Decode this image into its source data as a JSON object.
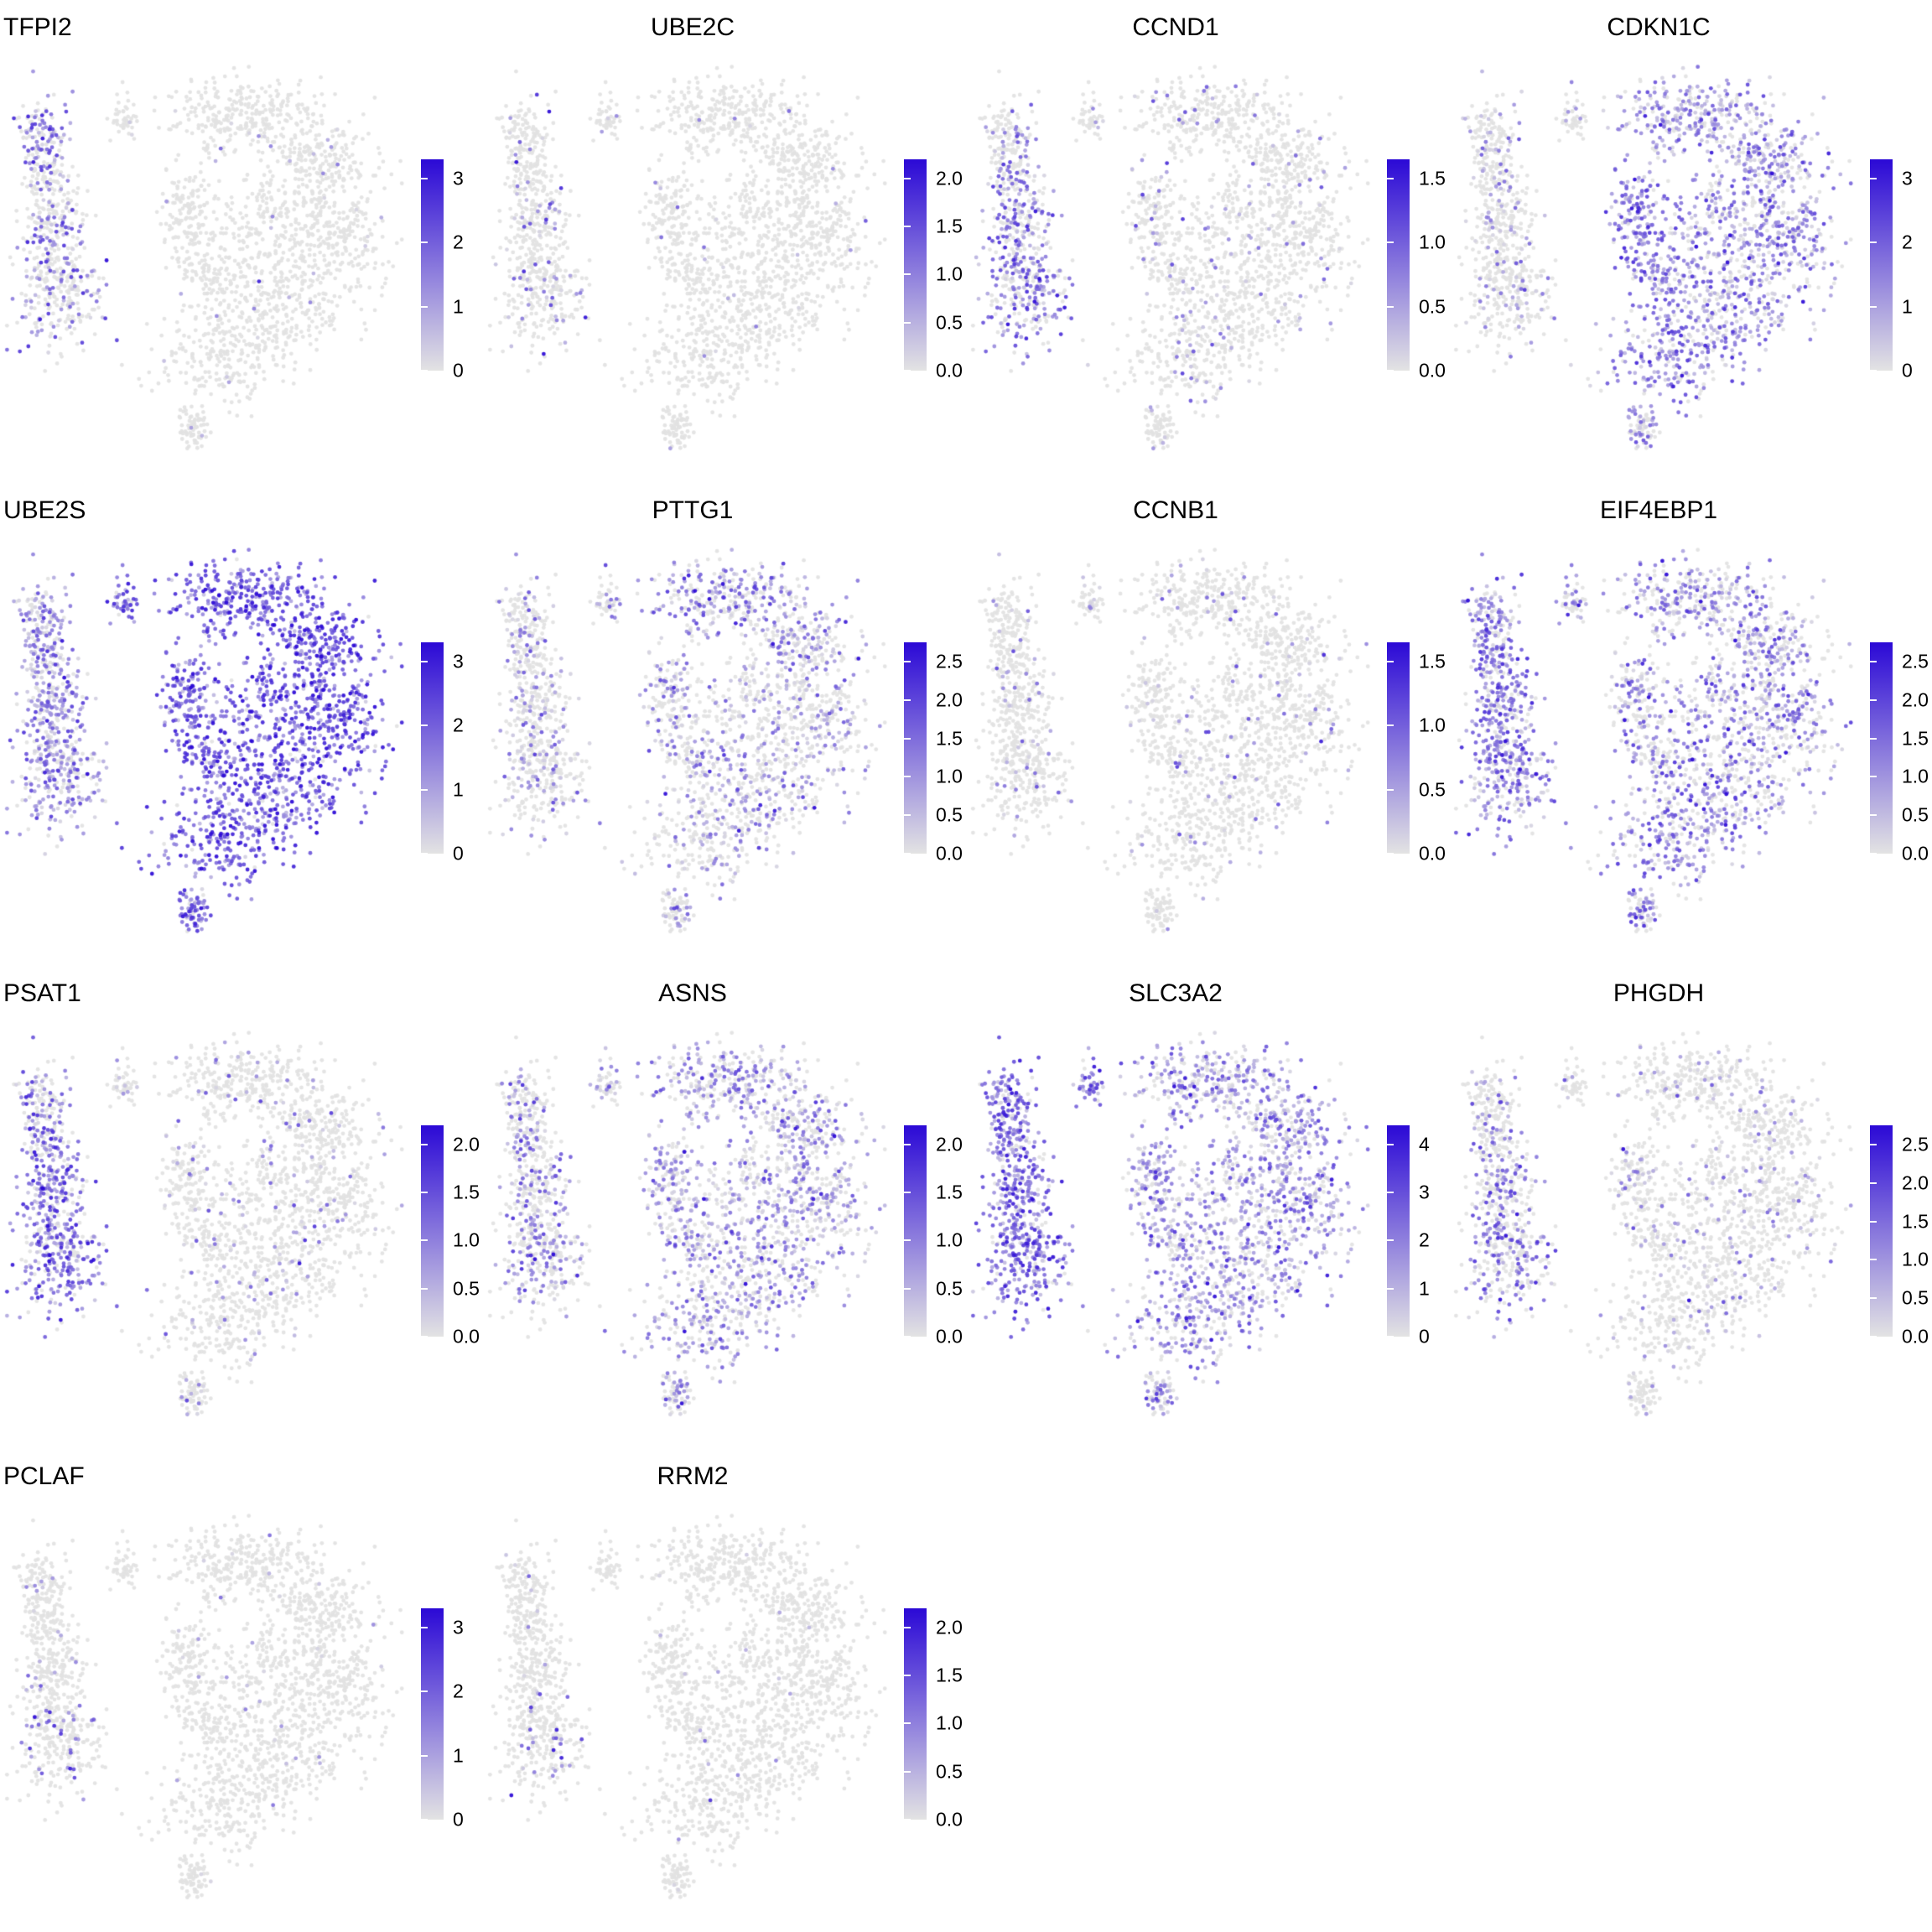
{
  "colors": {
    "background": "#FFFFFF",
    "point_gray": "#E2E2E2",
    "low": "#E3E3E3",
    "high": "#2B09D6",
    "text": "#000000"
  },
  "chart_data": {
    "type": "scatter",
    "plot_kind": "single-cell UMAP feature plots (expression overlay)",
    "grid": "4 columns x 4 rows, 14 panels, last row has 2 panels",
    "legend_position": "colorbar right of each panel",
    "colorbar_gradient": [
      "#E3E3E3",
      "#2B09D6"
    ],
    "embedding": {
      "description": "same 2D embedding in every panel: tall left cluster, small hook cluster upper-middle, large ring-like main cluster right, small blob bottom-center",
      "clusters": [
        {
          "name": "leftTop",
          "group": "left",
          "cx": 0.09,
          "cy": 0.2,
          "sx": 0.03,
          "sy": 0.055,
          "n": 130
        },
        {
          "name": "leftMid",
          "group": "left",
          "cx": 0.115,
          "cy": 0.38,
          "sx": 0.04,
          "sy": 0.075,
          "n": 220
        },
        {
          "name": "leftBot",
          "group": "left",
          "cx": 0.13,
          "cy": 0.58,
          "sx": 0.055,
          "sy": 0.075,
          "n": 260
        },
        {
          "name": "hook",
          "group": "hook",
          "cx": 0.295,
          "cy": 0.135,
          "sx": 0.018,
          "sy": 0.028,
          "n": 45
        },
        {
          "name": "mainTop",
          "group": "main",
          "cx": 0.6,
          "cy": 0.13,
          "sx": 0.095,
          "sy": 0.05,
          "n": 280
        },
        {
          "name": "mainTopRight",
          "group": "main",
          "cx": 0.78,
          "cy": 0.24,
          "sx": 0.07,
          "sy": 0.055,
          "n": 200
        },
        {
          "name": "mainRight",
          "group": "main",
          "cx": 0.84,
          "cy": 0.43,
          "sx": 0.055,
          "sy": 0.085,
          "n": 220
        },
        {
          "name": "mainCenter",
          "group": "main",
          "cx": 0.66,
          "cy": 0.4,
          "sx": 0.07,
          "sy": 0.06,
          "n": 180
        },
        {
          "name": "mainLowerMid",
          "group": "main",
          "cx": 0.7,
          "cy": 0.6,
          "sx": 0.085,
          "sy": 0.065,
          "n": 260
        },
        {
          "name": "mainBottom",
          "group": "main",
          "cx": 0.55,
          "cy": 0.74,
          "sx": 0.085,
          "sy": 0.055,
          "n": 240
        },
        {
          "name": "mainLeftArm",
          "group": "main",
          "cx": 0.455,
          "cy": 0.38,
          "sx": 0.035,
          "sy": 0.075,
          "n": 150
        },
        {
          "name": "mainInnerC",
          "group": "main",
          "cx": 0.52,
          "cy": 0.55,
          "sx": 0.045,
          "sy": 0.05,
          "n": 110
        },
        {
          "name": "bottomBlob",
          "group": "bottom",
          "cx": 0.47,
          "cy": 0.93,
          "sx": 0.022,
          "sy": 0.028,
          "n": 70
        }
      ]
    },
    "panels": [
      {
        "gene": "TFPI2",
        "colorbar_ticks": [
          "3",
          "2",
          "1",
          "0"
        ],
        "expression_by_cluster": {
          "left": {
            "frac": 0.35,
            "mean": 0.4
          },
          "leftTop": {
            "frac": 0.55,
            "mean": 0.5
          },
          "hook": {
            "frac": 0.05,
            "mean": 0.2
          },
          "main": {
            "frac": 0.02,
            "mean": 0.18
          },
          "bottom": {
            "frac": 0.04,
            "mean": 0.2
          }
        }
      },
      {
        "gene": "UBE2C",
        "colorbar_ticks": [
          "2.0",
          "1.5",
          "1.0",
          "0.5",
          "0.0"
        ],
        "expression_by_cluster": {
          "left": {
            "frac": 0.1,
            "mean": 0.35
          },
          "hook": {
            "frac": 0.05,
            "mean": 0.3
          },
          "main": {
            "frac": 0.015,
            "mean": 0.25
          },
          "bottom": {
            "frac": 0.02,
            "mean": 0.2
          }
        }
      },
      {
        "gene": "CCND1",
        "colorbar_ticks": [
          "1.5",
          "1.0",
          "0.5",
          "0.0"
        ],
        "expression_by_cluster": {
          "left": {
            "frac": 0.55,
            "mean": 0.45
          },
          "leftTop": {
            "frac": 0.25,
            "mean": 0.3
          },
          "hook": {
            "frac": 0.1,
            "mean": 0.3
          },
          "main": {
            "frac": 0.07,
            "mean": 0.3
          },
          "bottom": {
            "frac": 0.1,
            "mean": 0.3
          }
        }
      },
      {
        "gene": "CDKN1C",
        "colorbar_ticks": [
          "3",
          "2",
          "1",
          "0"
        ],
        "expression_by_cluster": {
          "left": {
            "frac": 0.2,
            "mean": 0.25
          },
          "hook": {
            "frac": 0.25,
            "mean": 0.3
          },
          "main": {
            "frac": 0.7,
            "mean": 0.33
          },
          "mainLeftArm": {
            "frac": 0.85,
            "mean": 0.45
          },
          "mainInnerC": {
            "frac": 0.85,
            "mean": 0.45
          },
          "mainBottom": {
            "frac": 0.8,
            "mean": 0.42
          },
          "bottom": {
            "frac": 0.5,
            "mean": 0.35
          }
        }
      },
      {
        "gene": "UBE2S",
        "colorbar_ticks": [
          "3",
          "2",
          "1",
          "0"
        ],
        "expression_by_cluster": {
          "left": {
            "frac": 0.75,
            "mean": 0.35
          },
          "hook": {
            "frac": 0.9,
            "mean": 0.55
          },
          "main": {
            "frac": 0.97,
            "mean": 0.6
          },
          "bottom": {
            "frac": 0.9,
            "mean": 0.5
          }
        }
      },
      {
        "gene": "PTTG1",
        "colorbar_ticks": [
          "2.5",
          "2.0",
          "1.5",
          "1.0",
          "0.5",
          "0.0"
        ],
        "expression_by_cluster": {
          "left": {
            "frac": 0.3,
            "mean": 0.3
          },
          "hook": {
            "frac": 0.3,
            "mean": 0.3
          },
          "main": {
            "frac": 0.35,
            "mean": 0.3
          },
          "mainTop": {
            "frac": 0.55,
            "mean": 0.38
          },
          "mainTopRight": {
            "frac": 0.5,
            "mean": 0.35
          },
          "bottom": {
            "frac": 0.3,
            "mean": 0.3
          }
        }
      },
      {
        "gene": "CCNB1",
        "colorbar_ticks": [
          "1.5",
          "1.0",
          "0.5",
          "0.0"
        ],
        "expression_by_cluster": {
          "left": {
            "frac": 0.1,
            "mean": 0.35
          },
          "hook": {
            "frac": 0.08,
            "mean": 0.3
          },
          "main": {
            "frac": 0.07,
            "mean": 0.3
          },
          "bottom": {
            "frac": 0.06,
            "mean": 0.3
          }
        }
      },
      {
        "gene": "EIF4EBP1",
        "colorbar_ticks": [
          "2.5",
          "2.0",
          "1.5",
          "1.0",
          "0.5",
          "0.0"
        ],
        "expression_by_cluster": {
          "left": {
            "frac": 0.75,
            "mean": 0.45
          },
          "hook": {
            "frac": 0.5,
            "mean": 0.4
          },
          "main": {
            "frac": 0.55,
            "mean": 0.38
          },
          "mainBottom": {
            "frac": 0.7,
            "mean": 0.42
          },
          "bottom": {
            "frac": 0.6,
            "mean": 0.42
          }
        }
      },
      {
        "gene": "PSAT1",
        "colorbar_ticks": [
          "2.0",
          "1.5",
          "1.0",
          "0.5",
          "0.0"
        ],
        "expression_by_cluster": {
          "left": {
            "frac": 0.72,
            "mean": 0.5
          },
          "leftTop": {
            "frac": 0.45,
            "mean": 0.4
          },
          "hook": {
            "frac": 0.15,
            "mean": 0.3
          },
          "main": {
            "frac": 0.1,
            "mean": 0.28
          },
          "bottom": {
            "frac": 0.12,
            "mean": 0.3
          }
        }
      },
      {
        "gene": "ASNS",
        "colorbar_ticks": [
          "2.0",
          "1.5",
          "1.0",
          "0.5",
          "0.0"
        ],
        "expression_by_cluster": {
          "left": {
            "frac": 0.35,
            "mean": 0.35
          },
          "hook": {
            "frac": 0.3,
            "mean": 0.3
          },
          "main": {
            "frac": 0.55,
            "mean": 0.33
          },
          "bottom": {
            "frac": 0.4,
            "mean": 0.33
          }
        }
      },
      {
        "gene": "SLC3A2",
        "colorbar_ticks": [
          "4",
          "3",
          "2",
          "1",
          "0"
        ],
        "expression_by_cluster": {
          "left": {
            "frac": 0.85,
            "mean": 0.5
          },
          "hook": {
            "frac": 0.8,
            "mean": 0.5
          },
          "main": {
            "frac": 0.7,
            "mean": 0.32
          },
          "bottom": {
            "frac": 0.6,
            "mean": 0.33
          }
        }
      },
      {
        "gene": "PHGDH",
        "colorbar_ticks": [
          "2.5",
          "2.0",
          "1.5",
          "1.0",
          "0.5",
          "0.0"
        ],
        "expression_by_cluster": {
          "left": {
            "frac": 0.45,
            "mean": 0.42
          },
          "leftTop": {
            "frac": 0.22,
            "mean": 0.3
          },
          "hook": {
            "frac": 0.1,
            "mean": 0.25
          },
          "main": {
            "frac": 0.13,
            "mean": 0.25
          },
          "bottom": {
            "frac": 0.12,
            "mean": 0.25
          }
        }
      },
      {
        "gene": "PCLAF",
        "colorbar_ticks": [
          "3",
          "2",
          "1",
          "0"
        ],
        "expression_by_cluster": {
          "left": {
            "frac": 0.05,
            "mean": 0.35
          },
          "leftBot": {
            "frac": 0.12,
            "mean": 0.55
          },
          "hook": {
            "frac": 0.02,
            "mean": 0.2
          },
          "main": {
            "frac": 0.015,
            "mean": 0.2
          },
          "bottom": {
            "frac": 0.02,
            "mean": 0.2
          }
        }
      },
      {
        "gene": "RRM2",
        "colorbar_ticks": [
          "2.0",
          "1.5",
          "1.0",
          "0.5",
          "0.0"
        ],
        "expression_by_cluster": {
          "left": {
            "frac": 0.04,
            "mean": 0.3
          },
          "leftBot": {
            "frac": 0.12,
            "mean": 0.5
          },
          "hook": {
            "frac": 0.02,
            "mean": 0.2
          },
          "main": {
            "frac": 0.012,
            "mean": 0.2
          },
          "bottom": {
            "frac": 0.02,
            "mean": 0.2
          }
        }
      }
    ]
  }
}
